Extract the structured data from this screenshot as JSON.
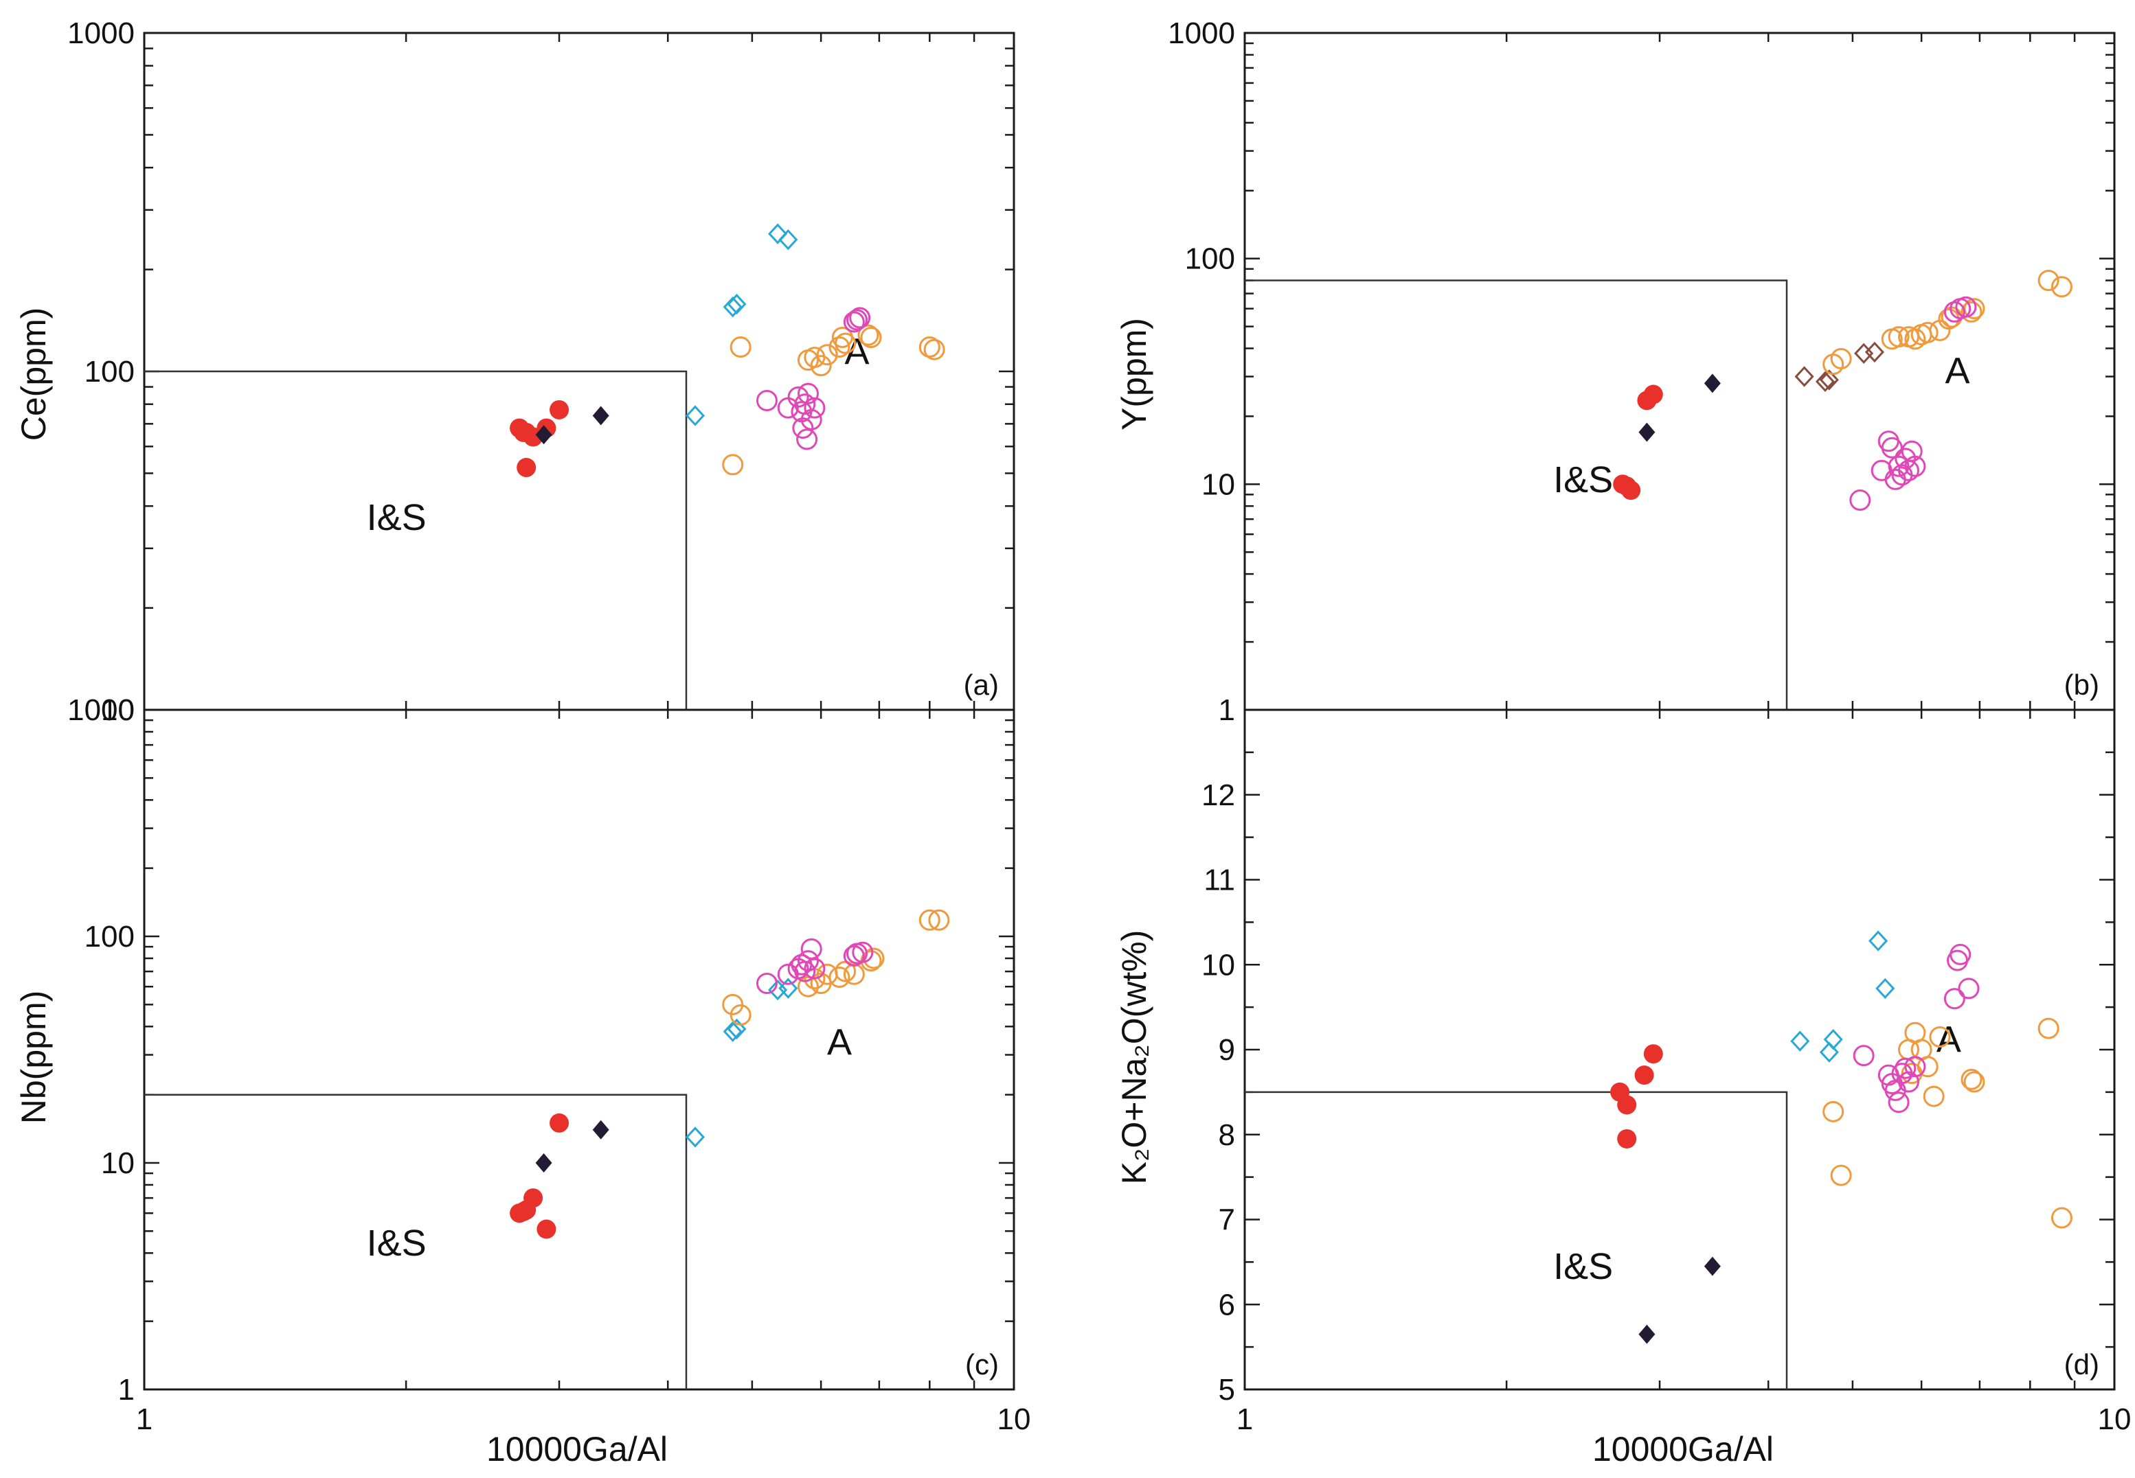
{
  "figure": {
    "xlabel": "10000Ga/Al",
    "colors": {
      "red_filled_circle": "#e8312a",
      "dark_filled_diamond": "#231a33",
      "cyan_open_diamond": "#27a8d6",
      "orange_open_circle": "#ef9a3d",
      "magenta_open_circle": "#e048b8",
      "brown_open_diamond": "#8a4a3e"
    }
  },
  "chart_data": [
    {
      "id": "a",
      "type": "scatter",
      "panel_label": "(a)",
      "ylabel": "Ce(ppm)",
      "xlabel": "",
      "x_scale": "log",
      "y_scale": "log",
      "xlim": [
        1,
        10
      ],
      "ylim": [
        10,
        1000
      ],
      "x_ticks": [],
      "y_ticks": [
        "1000",
        "100",
        "10"
      ],
      "field_labels": [
        {
          "text": "I&S",
          "x": 1.95,
          "y": 34
        },
        {
          "text": "A",
          "x": 6.6,
          "y": 105
        }
      ],
      "boundary": [
        [
          1,
          100
        ],
        [
          4.2,
          100
        ],
        [
          4.2,
          10
        ]
      ],
      "series": [
        {
          "marker": "red_filled_circle",
          "x": [
            2.7,
            2.75,
            2.8,
            2.9,
            3.0,
            2.75,
            2.73
          ],
          "y": [
            68,
            66,
            64,
            68,
            77,
            52,
            66
          ]
        },
        {
          "marker": "dark_filled_diamond",
          "x": [
            2.88,
            3.35
          ],
          "y": [
            65,
            74
          ]
        },
        {
          "marker": "cyan_open_diamond",
          "x": [
            4.3,
            4.75,
            4.8,
            5.35,
            5.5
          ],
          "y": [
            74,
            155,
            158,
            255,
            245
          ]
        },
        {
          "marker": "orange_open_circle",
          "x": [
            4.75,
            4.85,
            5.8,
            5.9,
            6.0,
            6.1,
            6.3,
            6.35,
            6.4,
            6.8,
            6.85,
            8.0,
            8.1
          ],
          "y": [
            53,
            118,
            108,
            110,
            104,
            112,
            118,
            126,
            121,
            128,
            126,
            118,
            116
          ]
        },
        {
          "marker": "magenta_open_circle",
          "x": [
            5.2,
            5.5,
            5.65,
            5.7,
            5.75,
            5.8,
            5.85,
            5.9,
            5.72,
            5.78,
            6.55,
            6.6,
            6.65
          ],
          "y": [
            82,
            78,
            84,
            76,
            80,
            86,
            72,
            78,
            68,
            63,
            140,
            142,
            144
          ]
        }
      ]
    },
    {
      "id": "b",
      "type": "scatter",
      "panel_label": "(b)",
      "ylabel": "Y(ppm)",
      "xlabel": "",
      "x_scale": "log",
      "y_scale": "log",
      "xlim": [
        1,
        10
      ],
      "ylim": [
        1,
        1000
      ],
      "x_ticks": [],
      "y_ticks": [
        "1000",
        "100",
        "10",
        "1"
      ],
      "field_labels": [
        {
          "text": "I&S",
          "x": 2.45,
          "y": 9.2
        },
        {
          "text": "A",
          "x": 6.6,
          "y": 28
        }
      ],
      "boundary": [
        [
          1,
          80
        ],
        [
          4.2,
          80
        ],
        [
          4.2,
          1
        ]
      ],
      "series": [
        {
          "marker": "red_filled_circle",
          "x": [
            2.72,
            2.75,
            2.78,
            2.9,
            2.95
          ],
          "y": [
            10,
            9.8,
            9.4,
            23.5,
            25
          ]
        },
        {
          "marker": "dark_filled_diamond",
          "x": [
            2.9,
            3.45
          ],
          "y": [
            17,
            28
          ]
        },
        {
          "marker": "brown_open_diamond",
          "x": [
            4.4,
            4.65,
            4.7,
            5.15,
            5.3
          ],
          "y": [
            30,
            28.5,
            29,
            38,
            38.5
          ]
        },
        {
          "marker": "orange_open_circle",
          "x": [
            4.75,
            4.85,
            5.55,
            5.65,
            5.8,
            5.9,
            6.0,
            6.1,
            6.3,
            6.45,
            6.5,
            6.85,
            6.9,
            8.4,
            8.7
          ],
          "y": [
            34,
            36,
            44,
            45,
            45,
            44,
            46,
            47,
            48,
            54,
            55,
            58,
            60,
            80,
            75
          ]
        },
        {
          "marker": "magenta_open_circle",
          "x": [
            5.1,
            5.4,
            5.5,
            5.55,
            5.6,
            5.65,
            5.7,
            5.75,
            5.8,
            5.85,
            5.9,
            6.55,
            6.65,
            6.75
          ],
          "y": [
            8.5,
            11.5,
            15.5,
            14.5,
            10.5,
            12,
            11,
            13,
            11.5,
            14,
            12,
            58,
            60,
            61
          ]
        }
      ]
    },
    {
      "id": "c",
      "type": "scatter",
      "panel_label": "(c)",
      "ylabel": "Nb(ppm)",
      "xlabel": "10000Ga/Al",
      "x_scale": "log",
      "y_scale": "log",
      "xlim": [
        1,
        10
      ],
      "ylim": [
        1,
        1000
      ],
      "x_ticks": [
        "1",
        "10"
      ],
      "y_ticks": [
        "1000",
        "100",
        "10",
        "1"
      ],
      "field_labels": [
        {
          "text": "I&S",
          "x": 1.95,
          "y": 3.9
        },
        {
          "text": "A",
          "x": 6.3,
          "y": 30
        }
      ],
      "boundary": [
        [
          1,
          20
        ],
        [
          4.2,
          20
        ],
        [
          4.2,
          1
        ]
      ],
      "series": [
        {
          "marker": "red_filled_circle",
          "x": [
            2.7,
            2.75,
            2.8,
            2.73,
            2.9,
            3.0
          ],
          "y": [
            6.0,
            6.2,
            7.0,
            6.1,
            5.1,
            15
          ]
        },
        {
          "marker": "dark_filled_diamond",
          "x": [
            2.88,
            3.35
          ],
          "y": [
            10,
            14
          ]
        },
        {
          "marker": "cyan_open_diamond",
          "x": [
            4.3,
            4.75,
            4.8,
            5.35,
            5.5
          ],
          "y": [
            13,
            38,
            39,
            58,
            59
          ]
        },
        {
          "marker": "orange_open_circle",
          "x": [
            4.75,
            4.85,
            5.8,
            5.9,
            6.0,
            6.1,
            6.3,
            6.4,
            6.55,
            6.85,
            6.9,
            8.0,
            8.2
          ],
          "y": [
            50,
            45,
            60,
            65,
            62,
            68,
            66,
            70,
            68,
            78,
            80,
            118,
            118
          ]
        },
        {
          "marker": "magenta_open_circle",
          "x": [
            5.2,
            5.5,
            5.65,
            5.7,
            5.75,
            5.8,
            5.85,
            5.9,
            6.55,
            6.6,
            6.7
          ],
          "y": [
            62,
            68,
            72,
            75,
            70,
            78,
            88,
            72,
            82,
            84,
            85
          ]
        }
      ]
    },
    {
      "id": "d",
      "type": "scatter",
      "panel_label": "(d)",
      "ylabel": "K₂O+Na₂O(wt%)",
      "xlabel": "10000Ga/Al",
      "x_scale": "log",
      "y_scale": "linear",
      "xlim": [
        1,
        10
      ],
      "ylim": [
        5,
        13
      ],
      "x_ticks": [
        "1",
        "10"
      ],
      "y_ticks": [
        "12",
        "11",
        "10",
        "9",
        "8",
        "7",
        "6",
        "5"
      ],
      "field_labels": [
        {
          "text": "I&S",
          "x": 2.45,
          "y": 6.3
        },
        {
          "text": "A",
          "x": 6.45,
          "y": 8.97
        }
      ],
      "boundary": [
        [
          1,
          8.5
        ],
        [
          4.2,
          8.5
        ],
        [
          4.2,
          5
        ]
      ],
      "series": [
        {
          "marker": "red_filled_circle",
          "x": [
            2.7,
            2.75,
            2.75,
            2.88,
            2.95
          ],
          "y": [
            8.5,
            8.35,
            7.95,
            8.7,
            8.95
          ]
        },
        {
          "marker": "dark_filled_diamond",
          "x": [
            2.9,
            3.45
          ],
          "y": [
            5.65,
            6.45
          ]
        },
        {
          "marker": "cyan_open_diamond",
          "x": [
            4.35,
            4.7,
            4.75,
            5.35,
            5.45
          ],
          "y": [
            9.1,
            8.97,
            9.12,
            10.28,
            9.72
          ]
        },
        {
          "marker": "orange_open_circle",
          "x": [
            4.75,
            4.85,
            5.8,
            5.85,
            5.9,
            6.0,
            6.1,
            6.2,
            6.3,
            6.85,
            6.9,
            8.4,
            8.7
          ],
          "y": [
            8.27,
            7.52,
            9.0,
            8.72,
            9.2,
            9.0,
            8.8,
            8.45,
            9.15,
            8.65,
            8.62,
            9.25,
            7.02
          ]
        },
        {
          "marker": "magenta_open_circle",
          "x": [
            5.15,
            5.5,
            5.55,
            5.6,
            5.65,
            5.7,
            5.75,
            5.8,
            5.9,
            6.55,
            6.6,
            6.65,
            6.8
          ],
          "y": [
            8.93,
            8.7,
            8.6,
            8.52,
            8.38,
            8.72,
            8.78,
            8.62,
            8.8,
            9.6,
            10.05,
            10.12,
            9.72
          ]
        }
      ]
    }
  ]
}
